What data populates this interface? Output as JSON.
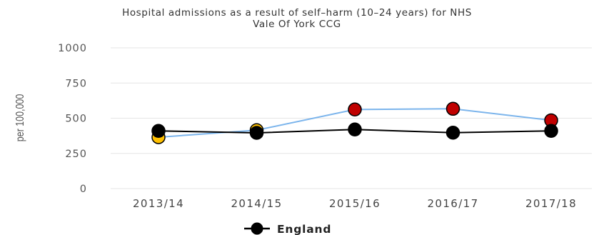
{
  "chart_data": {
    "type": "line",
    "title_lines": [
      "Hospital admissions as a result of self–harm (10–24 years) for NHS",
      "Vale Of York CCG"
    ],
    "ylabel": "per 100,000",
    "xlabel": "",
    "ylim": [
      0,
      1000
    ],
    "yticks": [
      0,
      250,
      500,
      750,
      1000
    ],
    "categories": [
      "2013/14",
      "2014/15",
      "2015/16",
      "2016/17",
      "2017/18"
    ],
    "grid": true,
    "legend_position": "bottom-center",
    "series": [
      {
        "values": [
          365,
          415,
          562,
          567,
          485
        ],
        "line_color": "#7cb5ec",
        "marker_colors": [
          "#ffc000",
          "#ffc000",
          "#c00000",
          "#c00000",
          "#c00000"
        ],
        "in_legend": false
      },
      {
        "name": "England",
        "values": [
          410,
          396,
          420,
          397,
          410
        ],
        "line_color": "#000000",
        "marker_colors": [
          "#000000",
          "#000000",
          "#000000",
          "#000000",
          "#000000"
        ],
        "in_legend": true
      }
    ],
    "colors": {
      "gridline": "#e6e6e6",
      "marker_outline": "#000000"
    }
  }
}
